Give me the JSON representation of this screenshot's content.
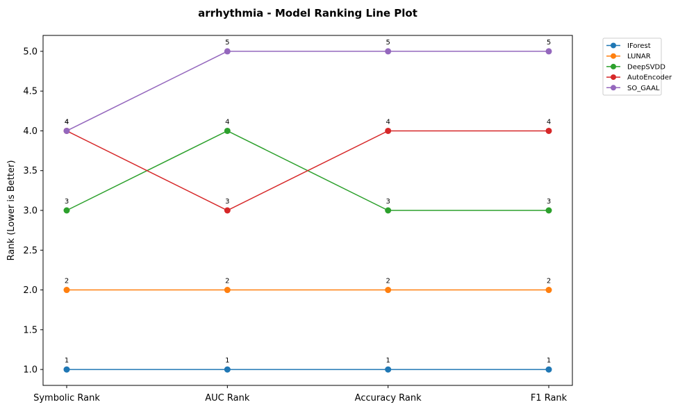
{
  "chart_data": {
    "type": "line",
    "title": "arrhythmia - Model Ranking Line Plot",
    "xlabel": "",
    "ylabel": "Rank (Lower is Better)",
    "categories": [
      "Symbolic Rank",
      "AUC Rank",
      "Accuracy Rank",
      "F1 Rank"
    ],
    "ylim": [
      0.8,
      5.2
    ],
    "yticks": [
      1.0,
      1.5,
      2.0,
      2.5,
      3.0,
      3.5,
      4.0,
      4.5,
      5.0
    ],
    "ytick_labels": [
      "1.0",
      "1.5",
      "2.0",
      "2.5",
      "3.0",
      "3.5",
      "4.0",
      "4.5",
      "5.0"
    ],
    "grid": false,
    "legend_position": "outside top-right",
    "series": [
      {
        "name": "IForest",
        "color": "#1f77b4",
        "values": [
          1,
          1,
          1,
          1
        ],
        "labels": [
          "1",
          "1",
          "1",
          "1"
        ]
      },
      {
        "name": "LUNAR",
        "color": "#ff7f0e",
        "values": [
          2,
          2,
          2,
          2
        ],
        "labels": [
          "2",
          "2",
          "2",
          "2"
        ]
      },
      {
        "name": "DeepSVDD",
        "color": "#2ca02c",
        "values": [
          3,
          4,
          3,
          3
        ],
        "labels": [
          "3",
          "4",
          "3",
          "3"
        ]
      },
      {
        "name": "AutoEncoder",
        "color": "#d62728",
        "values": [
          4,
          3,
          4,
          4
        ],
        "labels": [
          "4",
          "3",
          "4",
          "4"
        ]
      },
      {
        "name": "SO_GAAL",
        "color": "#9467bd",
        "values": [
          4,
          5,
          5,
          5
        ],
        "labels": [
          "4",
          "5",
          "5",
          "5"
        ]
      }
    ]
  }
}
